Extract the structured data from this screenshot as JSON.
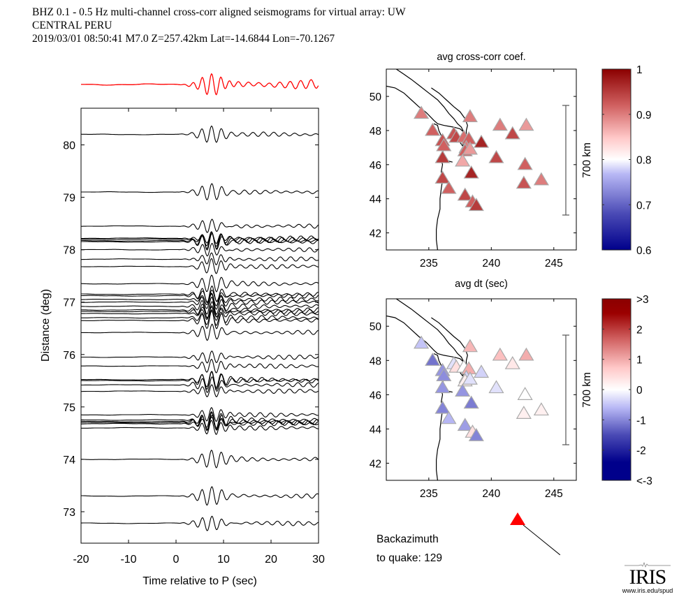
{
  "header": {
    "line1": "BHZ  0.1 - 0.5 Hz  multi-channel cross-corr aligned seismograms for virtual array: UW",
    "line2": "CENTRAL PERU",
    "line3": "2019/03/01  08:50:41  M7.0  Z=257.42km Lat=-14.6844 Lon=-70.1267"
  },
  "footer": {
    "backazimuth_label": "Backazimuth",
    "backazimuth_value_label": "to quake:  129",
    "backazimuth_deg": 129,
    "logo_text": "IRIS",
    "logo_url": "www.iris.edu/spud"
  },
  "colors": {
    "stack_trace": "#ff0000",
    "trace": "#000000",
    "quake_marker": "#ff0000"
  },
  "chart_data": [
    {
      "type": "line",
      "name": "seismogram-section",
      "title": "",
      "xlabel": "Time relative to P (sec)",
      "ylabel": "Distance (deg)",
      "xlim": [
        -20,
        30
      ],
      "ylim": [
        72.4,
        80.7
      ],
      "xticks": [
        "-20",
        "-10",
        "0",
        "10",
        "20",
        "30"
      ],
      "yticks": [
        "73",
        "74",
        "75",
        "76",
        "77",
        "78",
        "79",
        "80"
      ],
      "stack_trace": "red beamformed stack plotted above the section",
      "trace_distances_deg": [
        80.2,
        79.1,
        78.45,
        78.22,
        78.2,
        78.17,
        78.15,
        78.0,
        77.82,
        77.68,
        77.35,
        77.15,
        77.12,
        77.05,
        77.0,
        76.92,
        76.85,
        76.82,
        76.78,
        76.7,
        76.65,
        76.42,
        75.95,
        75.78,
        75.52,
        75.5,
        75.42,
        75.3,
        74.85,
        74.75,
        74.72,
        74.7,
        74.68,
        74.6,
        74.0,
        73.3,
        72.78
      ]
    },
    {
      "type": "scatter",
      "name": "map-avg-cross-corr-coef",
      "title": "avg cross-corr coef.",
      "xlabel": "",
      "ylabel": "",
      "xlim": [
        231.6,
        246.8
      ],
      "ylim": [
        41.0,
        51.6
      ],
      "xticks": [
        "235",
        "240",
        "245"
      ],
      "yticks": [
        "42",
        "44",
        "46",
        "48",
        "50"
      ],
      "scale_bar_label": "700 km",
      "colorbar": {
        "min": 0.6,
        "max": 1.0,
        "ticks": [
          "1",
          "0.9",
          "0.8",
          "0.7",
          "0.6"
        ]
      },
      "stations": [
        {
          "lon": 234.4,
          "lat": 49.0,
          "value": 0.9
        },
        {
          "lon": 238.3,
          "lat": 48.8,
          "value": 0.9
        },
        {
          "lon": 240.7,
          "lat": 48.3,
          "value": 0.9
        },
        {
          "lon": 242.8,
          "lat": 48.3,
          "value": 0.88
        },
        {
          "lon": 235.3,
          "lat": 48.0,
          "value": 0.92
        },
        {
          "lon": 237.0,
          "lat": 47.8,
          "value": 0.93
        },
        {
          "lon": 237.2,
          "lat": 47.6,
          "value": 0.94
        },
        {
          "lon": 237.8,
          "lat": 47.6,
          "value": 0.91
        },
        {
          "lon": 238.2,
          "lat": 47.5,
          "value": 0.92
        },
        {
          "lon": 241.7,
          "lat": 47.8,
          "value": 0.94
        },
        {
          "lon": 239.2,
          "lat": 47.3,
          "value": 0.97
        },
        {
          "lon": 236.1,
          "lat": 47.4,
          "value": 0.93
        },
        {
          "lon": 236.2,
          "lat": 47.1,
          "value": 0.92
        },
        {
          "lon": 238.0,
          "lat": 47.0,
          "value": 0.9
        },
        {
          "lon": 237.9,
          "lat": 46.8,
          "value": 0.92
        },
        {
          "lon": 238.3,
          "lat": 46.9,
          "value": 0.88
        },
        {
          "lon": 236.1,
          "lat": 46.4,
          "value": 0.95
        },
        {
          "lon": 240.4,
          "lat": 46.4,
          "value": 0.94
        },
        {
          "lon": 237.7,
          "lat": 46.2,
          "value": 0.87
        },
        {
          "lon": 242.7,
          "lat": 46.0,
          "value": 0.92
        },
        {
          "lon": 238.4,
          "lat": 45.5,
          "value": 0.97
        },
        {
          "lon": 236.1,
          "lat": 45.2,
          "value": 0.94
        },
        {
          "lon": 244.0,
          "lat": 45.1,
          "value": 0.9
        },
        {
          "lon": 242.6,
          "lat": 44.9,
          "value": 0.93
        },
        {
          "lon": 236.6,
          "lat": 44.6,
          "value": 0.92
        },
        {
          "lon": 237.9,
          "lat": 44.2,
          "value": 0.94
        },
        {
          "lon": 238.5,
          "lat": 43.8,
          "value": 0.92
        },
        {
          "lon": 238.8,
          "lat": 43.6,
          "value": 0.95
        }
      ]
    },
    {
      "type": "scatter",
      "name": "map-avg-dt",
      "title": "avg dt (sec)",
      "xlabel": "",
      "ylabel": "",
      "xlim": [
        231.6,
        246.8
      ],
      "ylim": [
        41.0,
        51.6
      ],
      "xticks": [
        "235",
        "240",
        "245"
      ],
      "yticks": [
        "42",
        "44",
        "46",
        "48",
        "50"
      ],
      "scale_bar_label": "700 km",
      "colorbar": {
        "min": -3,
        "max": 3,
        "ticks": [
          ">3",
          "2",
          "1",
          "0",
          "-1",
          "-2",
          "<-3"
        ]
      },
      "stations": [
        {
          "lon": 234.4,
          "lat": 49.0,
          "value": -0.4
        },
        {
          "lon": 238.3,
          "lat": 48.8,
          "value": 0.9
        },
        {
          "lon": 240.7,
          "lat": 48.3,
          "value": 0.8
        },
        {
          "lon": 242.8,
          "lat": 48.3,
          "value": 1.0
        },
        {
          "lon": 235.3,
          "lat": 48.0,
          "value": -1.3
        },
        {
          "lon": 237.0,
          "lat": 47.8,
          "value": -0.2
        },
        {
          "lon": 237.2,
          "lat": 47.6,
          "value": 0.4
        },
        {
          "lon": 237.8,
          "lat": 47.6,
          "value": 0.0
        },
        {
          "lon": 238.2,
          "lat": 47.5,
          "value": 1.0
        },
        {
          "lon": 241.7,
          "lat": 47.8,
          "value": 0.3
        },
        {
          "lon": 239.2,
          "lat": 47.3,
          "value": -0.3
        },
        {
          "lon": 236.1,
          "lat": 47.4,
          "value": -0.9
        },
        {
          "lon": 236.2,
          "lat": 47.1,
          "value": -1.0
        },
        {
          "lon": 238.0,
          "lat": 47.0,
          "value": -0.3
        },
        {
          "lon": 237.9,
          "lat": 46.8,
          "value": 0.2
        },
        {
          "lon": 238.3,
          "lat": 46.9,
          "value": -0.2
        },
        {
          "lon": 236.1,
          "lat": 46.4,
          "value": -0.9
        },
        {
          "lon": 240.4,
          "lat": 46.4,
          "value": -0.2
        },
        {
          "lon": 237.7,
          "lat": 46.2,
          "value": -0.9
        },
        {
          "lon": 242.7,
          "lat": 46.0,
          "value": 0.0
        },
        {
          "lon": 238.4,
          "lat": 45.5,
          "value": -1.2
        },
        {
          "lon": 236.1,
          "lat": 45.2,
          "value": -1.1
        },
        {
          "lon": 244.0,
          "lat": 45.1,
          "value": 0.2
        },
        {
          "lon": 242.6,
          "lat": 44.9,
          "value": 0.2
        },
        {
          "lon": 236.6,
          "lat": 44.6,
          "value": -0.5
        },
        {
          "lon": 237.9,
          "lat": 44.2,
          "value": -0.8
        },
        {
          "lon": 238.5,
          "lat": 43.8,
          "value": 0.4
        },
        {
          "lon": 238.8,
          "lat": 43.6,
          "value": -1.1
        }
      ]
    }
  ]
}
